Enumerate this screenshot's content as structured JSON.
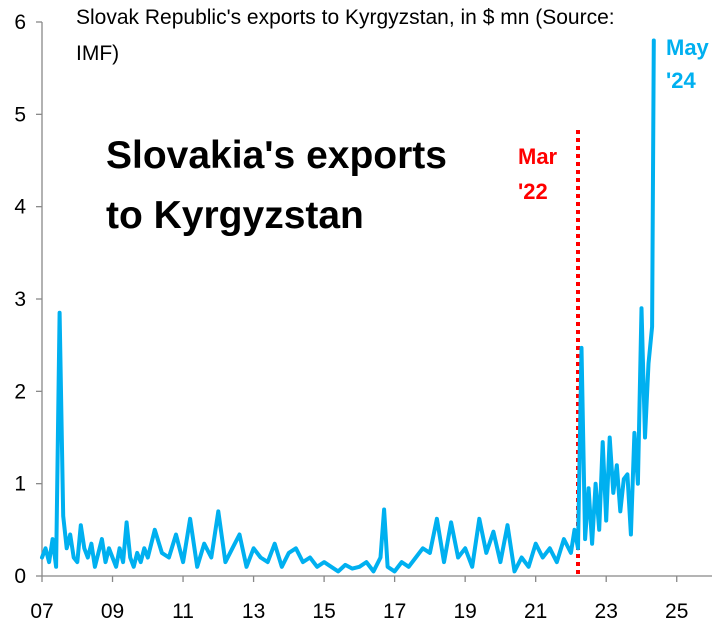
{
  "chart_data": {
    "type": "line",
    "subtitle_lines": [
      "Slovak Republic's exports to Kyrgyzstan, in $ mn (Source:",
      "IMF)"
    ],
    "title_lines": [
      "Slovakia's exports",
      "to Kyrgyzstan"
    ],
    "xlabel": "",
    "ylabel": "",
    "x_tick_labels": [
      "07",
      "09",
      "11",
      "13",
      "15",
      "17",
      "19",
      "21",
      "23",
      "25"
    ],
    "y_tick_labels": [
      "0",
      "1",
      "2",
      "3",
      "4",
      "5",
      "6"
    ],
    "xlim": [
      2007.0,
      2026.0
    ],
    "ylim": [
      0,
      6
    ],
    "grid": false,
    "line_color": "#00B0F0",
    "event_line": {
      "x": 2022.2,
      "label_lines": [
        "Mar",
        "'22"
      ],
      "color": "#FF0000",
      "style": "dotted"
    },
    "end_label": {
      "lines": [
        "May",
        "'24"
      ],
      "color": "#00B0F0"
    },
    "series": [
      {
        "x": [
          2007.0,
          2007.1,
          2007.2,
          2007.3,
          2007.4,
          2007.5,
          2007.6,
          2007.7,
          2007.8,
          2007.9,
          2008.0,
          2008.1,
          2008.2,
          2008.3,
          2008.4,
          2008.5,
          2008.6,
          2008.7,
          2008.8,
          2008.9,
          2009.0,
          2009.1,
          2009.2,
          2009.3,
          2009.4,
          2009.5,
          2009.6,
          2009.7,
          2009.8,
          2009.9,
          2010.0,
          2010.2,
          2010.4,
          2010.6,
          2010.8,
          2011.0,
          2011.2,
          2011.4,
          2011.6,
          2011.8,
          2012.0,
          2012.2,
          2012.4,
          2012.6,
          2012.8,
          2013.0,
          2013.2,
          2013.4,
          2013.6,
          2013.8,
          2014.0,
          2014.2,
          2014.4,
          2014.6,
          2014.8,
          2015.0,
          2015.2,
          2015.4,
          2015.6,
          2015.8,
          2016.0,
          2016.2,
          2016.4,
          2016.6,
          2016.7,
          2016.8,
          2017.0,
          2017.2,
          2017.4,
          2017.6,
          2017.8,
          2018.0,
          2018.2,
          2018.4,
          2018.6,
          2018.8,
          2019.0,
          2019.2,
          2019.4,
          2019.6,
          2019.8,
          2020.0,
          2020.2,
          2020.4,
          2020.6,
          2020.8,
          2021.0,
          2021.2,
          2021.4,
          2021.6,
          2021.8,
          2022.0,
          2022.1,
          2022.2,
          2022.3,
          2022.4,
          2022.5,
          2022.6,
          2022.7,
          2022.8,
          2022.9,
          2023.0,
          2023.1,
          2023.2,
          2023.3,
          2023.4,
          2023.5,
          2023.6,
          2023.7,
          2023.8,
          2023.9,
          2024.0,
          2024.1,
          2024.2,
          2024.3,
          2024.35
        ],
        "values": [
          0.2,
          0.3,
          0.15,
          0.4,
          0.1,
          2.85,
          0.65,
          0.3,
          0.45,
          0.2,
          0.15,
          0.55,
          0.3,
          0.2,
          0.35,
          0.1,
          0.25,
          0.4,
          0.15,
          0.3,
          0.2,
          0.1,
          0.3,
          0.15,
          0.58,
          0.2,
          0.1,
          0.25,
          0.15,
          0.3,
          0.2,
          0.5,
          0.25,
          0.2,
          0.45,
          0.15,
          0.62,
          0.1,
          0.35,
          0.2,
          0.7,
          0.15,
          0.3,
          0.45,
          0.1,
          0.3,
          0.2,
          0.15,
          0.35,
          0.1,
          0.25,
          0.3,
          0.15,
          0.2,
          0.1,
          0.15,
          0.1,
          0.05,
          0.12,
          0.08,
          0.1,
          0.15,
          0.05,
          0.2,
          0.72,
          0.1,
          0.05,
          0.15,
          0.1,
          0.2,
          0.3,
          0.25,
          0.62,
          0.15,
          0.58,
          0.2,
          0.3,
          0.1,
          0.62,
          0.25,
          0.48,
          0.15,
          0.55,
          0.05,
          0.2,
          0.1,
          0.35,
          0.2,
          0.3,
          0.15,
          0.4,
          0.25,
          0.5,
          0.3,
          2.47,
          0.4,
          0.95,
          0.35,
          1.0,
          0.5,
          1.45,
          0.6,
          1.5,
          0.9,
          1.2,
          0.7,
          1.05,
          1.1,
          0.45,
          1.55,
          1.0,
          2.9,
          1.5,
          2.3,
          2.7,
          5.8
        ]
      }
    ]
  }
}
